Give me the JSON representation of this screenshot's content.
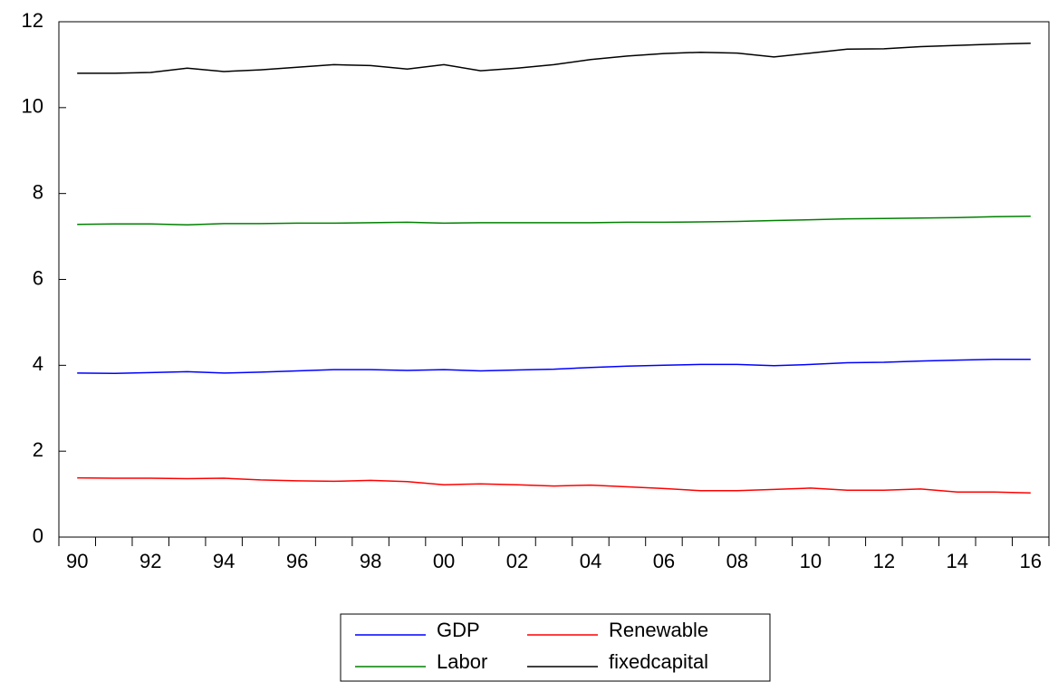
{
  "chart_data": {
    "type": "line",
    "categories": [
      "90",
      null,
      "92",
      null,
      "94",
      null,
      "96",
      null,
      "98",
      null,
      "00",
      null,
      "02",
      null,
      "04",
      null,
      "06",
      null,
      "08",
      null,
      "10",
      null,
      "12",
      null,
      "14",
      null,
      "16"
    ],
    "series": [
      {
        "name": "GDP",
        "color": "#0000ff",
        "values": [
          3.82,
          3.81,
          3.83,
          3.85,
          3.82,
          3.84,
          3.87,
          3.9,
          3.9,
          3.88,
          3.9,
          3.87,
          3.89,
          3.91,
          3.95,
          3.98,
          4.0,
          4.02,
          4.02,
          3.99,
          4.02,
          4.06,
          4.07,
          4.1,
          4.12,
          4.14,
          4.14
        ]
      },
      {
        "name": "Renewable",
        "color": "#ff0000",
        "values": [
          1.38,
          1.37,
          1.37,
          1.36,
          1.37,
          1.33,
          1.31,
          1.3,
          1.32,
          1.29,
          1.22,
          1.24,
          1.22,
          1.19,
          1.21,
          1.17,
          1.13,
          1.08,
          1.08,
          1.11,
          1.14,
          1.09,
          1.09,
          1.12,
          1.05,
          1.05,
          1.03
        ]
      },
      {
        "name": "Labor",
        "color": "#008000",
        "values": [
          7.28,
          7.29,
          7.29,
          7.27,
          7.3,
          7.3,
          7.31,
          7.31,
          7.32,
          7.33,
          7.31,
          7.32,
          7.32,
          7.32,
          7.32,
          7.33,
          7.33,
          7.34,
          7.35,
          7.37,
          7.39,
          7.41,
          7.42,
          7.43,
          7.44,
          7.46,
          7.47
        ]
      },
      {
        "name": "fixedcapital",
        "color": "#000000",
        "values": [
          10.8,
          10.8,
          10.82,
          10.92,
          10.84,
          10.88,
          10.94,
          11.0,
          10.98,
          10.9,
          11.0,
          10.86,
          10.92,
          11.0,
          11.12,
          11.2,
          11.26,
          11.29,
          11.27,
          11.18,
          11.27,
          11.36,
          11.37,
          11.42,
          11.45,
          11.48,
          11.5
        ]
      }
    ],
    "ylim": [
      0,
      12
    ],
    "yticks": [
      0,
      2,
      4,
      6,
      8,
      10,
      12
    ]
  }
}
